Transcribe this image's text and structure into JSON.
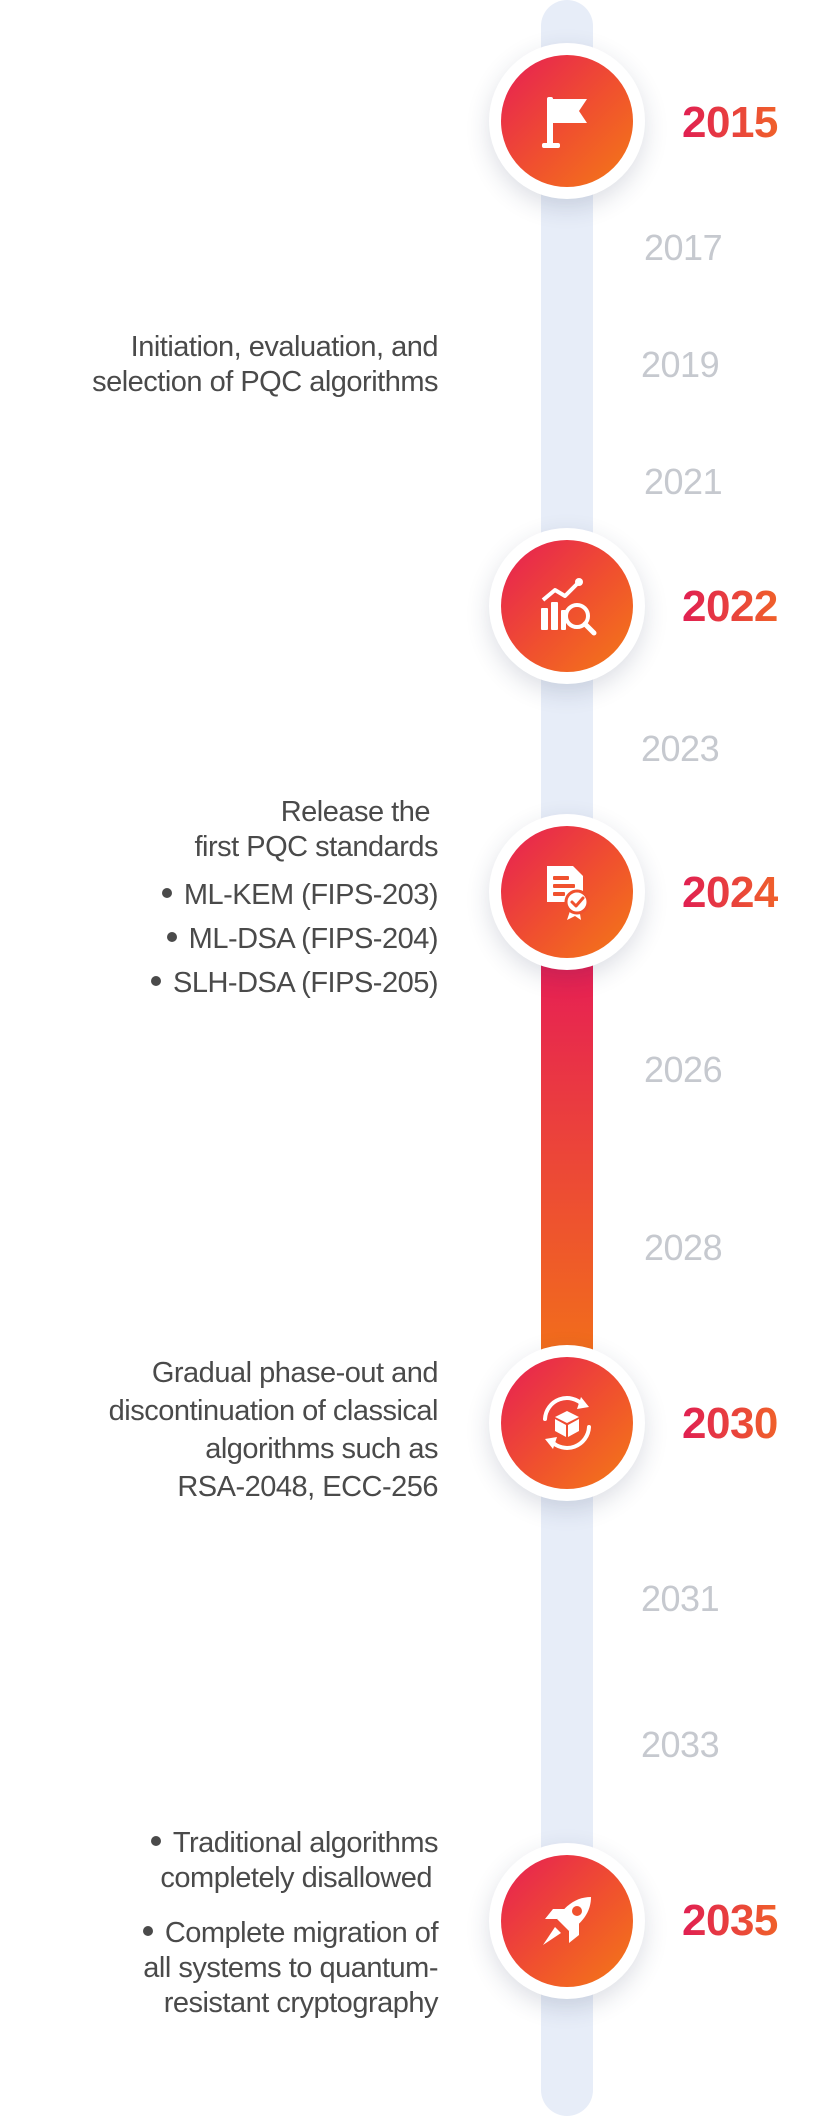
{
  "timeline": {
    "colors": {
      "accent_start": "#e61e55",
      "accent_end": "#f47a16",
      "track": "#e7edf8",
      "minor_year": "#c6c9cf",
      "text": "#4a4a4a"
    },
    "milestones": [
      {
        "year": "2015",
        "icon": "flag-icon"
      },
      {
        "year": "2022",
        "icon": "chart-search-icon"
      },
      {
        "year": "2024",
        "icon": "certificate-icon"
      },
      {
        "year": "2030",
        "icon": "cube-refresh-icon"
      },
      {
        "year": "2035",
        "icon": "rocket-icon"
      }
    ],
    "minor_years": [
      "2017",
      "2019",
      "2021",
      "2023",
      "2026",
      "2028",
      "2031",
      "2033"
    ],
    "descriptions": {
      "initiation": [
        "Initiation, evaluation, and",
        "selection of PQC algorithms"
      ],
      "release": {
        "title": [
          "Release the",
          "first PQC standards"
        ],
        "items": [
          "ML-KEM (FIPS-203)",
          "ML-DSA (FIPS-204)",
          "SLH-DSA (FIPS-205)"
        ]
      },
      "phaseout": [
        "Gradual phase-out and",
        "discontinuation of classical",
        "algorithms such as",
        "RSA-2048, ECC-256"
      ],
      "final": {
        "items": [
          [
            "Traditional algorithms",
            "completely disallowed"
          ],
          [
            "Complete migration of",
            "all systems to quantum-",
            "resistant cryptography"
          ]
        ]
      }
    }
  }
}
